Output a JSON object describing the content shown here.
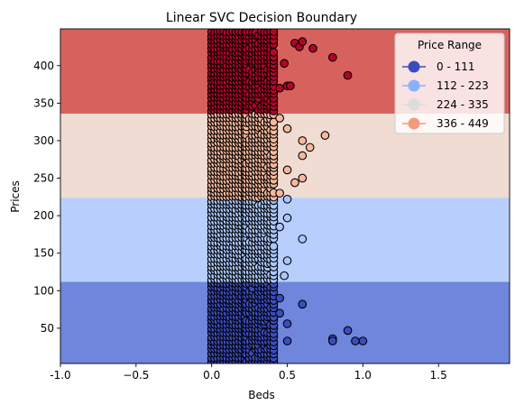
{
  "chart_data": {
    "type": "scatter",
    "title": "Linear SVC Decision Boundary",
    "xlabel": "Beds",
    "ylabel": "Prices",
    "xlim": [
      -1.0,
      1.97
    ],
    "ylim": [
      3,
      449
    ],
    "x_ticks": [
      -1.0,
      -0.5,
      0.0,
      0.5,
      1.0,
      1.5
    ],
    "x_tick_labels": [
      "-1.0",
      "−0.5",
      "0.0",
      "0.5",
      "1.0",
      "1.5"
    ],
    "y_ticks": [
      50,
      100,
      150,
      200,
      250,
      300,
      350,
      400
    ],
    "y_tick_labels": [
      "50",
      "100",
      "150",
      "200",
      "250",
      "300",
      "350",
      "400"
    ],
    "grid": false,
    "legend": {
      "title": "Price Range",
      "placement": "top-right",
      "entries": [
        {
          "label": "0 - 111",
          "color": "#3b4cc0"
        },
        {
          "label": "112 - 223",
          "color": "#8db0fe"
        },
        {
          "label": "224 - 335",
          "color": "#dddcdc"
        },
        {
          "label": "336 - 449",
          "color": "#f49a7b"
        }
      ]
    },
    "decision_regions": [
      {
        "class": "0 - 111",
        "y_range": [
          3,
          112
        ],
        "color": "#6f86dc"
      },
      {
        "class": "112 - 223",
        "y_range": [
          112,
          224
        ],
        "color": "#b8cffd"
      },
      {
        "class": "224 - 335",
        "y_range": [
          224,
          336
        ],
        "color": "#f0dcd2"
      },
      {
        "class": "336 - 449",
        "y_range": [
          336,
          449
        ],
        "color": "#d7625d"
      }
    ],
    "point_colors": [
      {
        "class": "0 - 111",
        "y_range": [
          3,
          112
        ],
        "color": "#3b4cc0"
      },
      {
        "class": "112 - 223",
        "y_range": [
          112,
          224
        ],
        "color": "#aac7fd"
      },
      {
        "class": "224 - 335",
        "y_range": [
          224,
          336
        ],
        "color": "#f7b89c"
      },
      {
        "class": "336 - 449",
        "y_range": [
          336,
          449
        ],
        "color": "#b40426"
      }
    ],
    "dense_bands": [
      {
        "x": [
          0.0,
          0.22
        ],
        "y": [
          3,
          449
        ]
      },
      {
        "x": [
          0.23,
          0.42
        ],
        "y": [
          3,
          449
        ]
      }
    ],
    "points": [
      {
        "x": 0.45,
        "y": 370
      },
      {
        "x": 0.48,
        "y": 403
      },
      {
        "x": 0.5,
        "y": 373
      },
      {
        "x": 0.52,
        "y": 373
      },
      {
        "x": 0.55,
        "y": 430
      },
      {
        "x": 0.58,
        "y": 425
      },
      {
        "x": 0.6,
        "y": 432
      },
      {
        "x": 0.67,
        "y": 423
      },
      {
        "x": 0.8,
        "y": 411
      },
      {
        "x": 0.9,
        "y": 387
      },
      {
        "x": 0.45,
        "y": 330
      },
      {
        "x": 0.5,
        "y": 316
      },
      {
        "x": 0.6,
        "y": 300
      },
      {
        "x": 0.6,
        "y": 280
      },
      {
        "x": 0.65,
        "y": 291
      },
      {
        "x": 0.75,
        "y": 307
      },
      {
        "x": 0.5,
        "y": 261
      },
      {
        "x": 0.55,
        "y": 244
      },
      {
        "x": 0.6,
        "y": 250
      },
      {
        "x": 0.5,
        "y": 222
      },
      {
        "x": 0.45,
        "y": 230
      },
      {
        "x": 0.5,
        "y": 197
      },
      {
        "x": 0.6,
        "y": 169
      },
      {
        "x": 0.45,
        "y": 185
      },
      {
        "x": 0.5,
        "y": 140
      },
      {
        "x": 0.48,
        "y": 120
      },
      {
        "x": 0.6,
        "y": 82
      },
      {
        "x": 0.5,
        "y": 56
      },
      {
        "x": 0.5,
        "y": 33
      },
      {
        "x": 0.8,
        "y": 36
      },
      {
        "x": 0.8,
        "y": 33
      },
      {
        "x": 0.9,
        "y": 47
      },
      {
        "x": 0.95,
        "y": 33
      },
      {
        "x": 1.0,
        "y": 33
      },
      {
        "x": 0.45,
        "y": 90
      },
      {
        "x": 0.45,
        "y": 70
      }
    ]
  }
}
